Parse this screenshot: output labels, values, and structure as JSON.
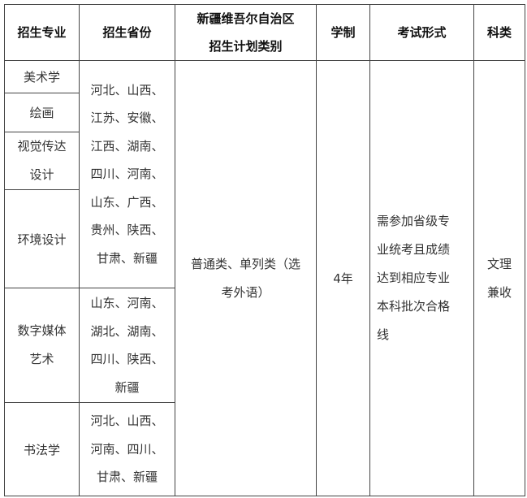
{
  "headers": {
    "major": "招生专业",
    "provinces": "招生省份",
    "category_line1": "新疆维吾尔自治区",
    "category_line2": "招生计划类别",
    "duration": "学制",
    "exam": "考试形式",
    "subject": "科类"
  },
  "majors": [
    {
      "name": "美术学"
    },
    {
      "name": "绘画"
    },
    {
      "name_line1": "视觉传达",
      "name_line2": "设计"
    },
    {
      "name": "环境设计"
    },
    {
      "name_line1": "数字媒体",
      "name_line2": "艺术"
    },
    {
      "name": "书法学"
    }
  ],
  "province_groups": [
    {
      "lines": [
        "河北、山西、",
        "江苏、安徽、",
        "江西、湖南、",
        "四川、河南、",
        "山东、广西、",
        "贵州、陕西、",
        "甘肃、新疆"
      ]
    },
    {
      "lines": [
        "山东、河南、",
        "湖北、湖南、",
        "四川、陕西、",
        "新疆"
      ]
    },
    {
      "lines": [
        "河北、山西、",
        "河南、四川、",
        "甘肃、新疆"
      ]
    }
  ],
  "category": {
    "line1": "普通类、单列类（选",
    "line2": "考外语）"
  },
  "duration": "4年",
  "exam": {
    "lines": [
      "需参加省级专",
      "业统考且成绩",
      "达到相应专业",
      "本科批次合格",
      "线"
    ]
  },
  "subject": {
    "line1": "文理",
    "line2": "兼收"
  }
}
